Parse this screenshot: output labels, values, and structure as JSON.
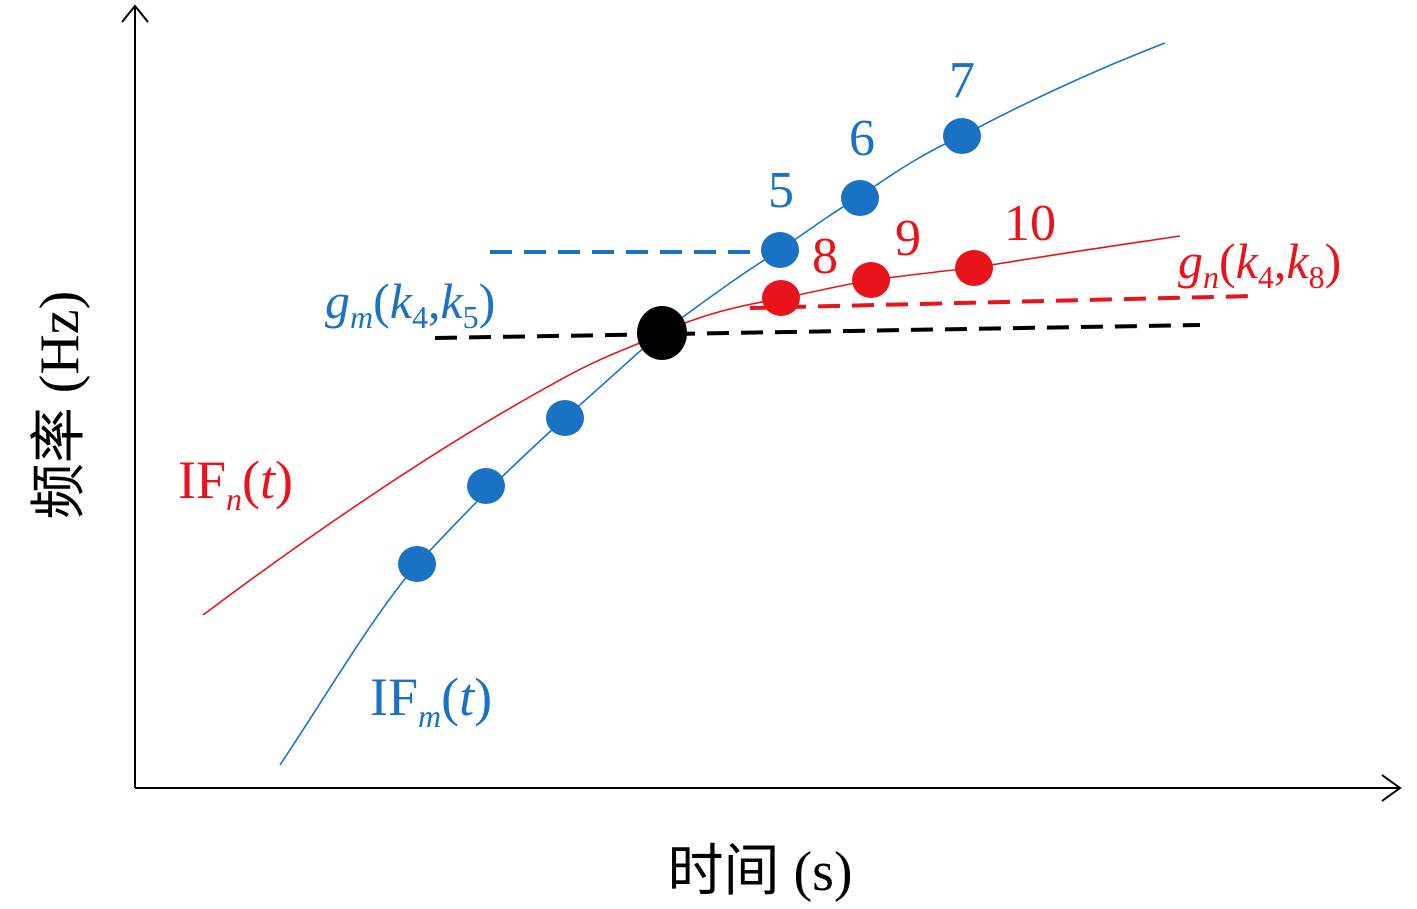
{
  "axes": {
    "x_label": "时间 (s)",
    "y_label": "频率 (Hz)"
  },
  "point_labels": [
    "5",
    "6",
    "7",
    "8",
    "9",
    "10"
  ],
  "curve_labels": {
    "if_m": [
      "IF",
      "m",
      "(",
      "t",
      ")"
    ],
    "if_n": [
      "IF",
      "n",
      "(",
      "t",
      ")"
    ],
    "g_m": [
      "g",
      "m",
      "(",
      "k",
      "4",
      ",",
      "k",
      "5",
      ")"
    ],
    "g_n": [
      "g",
      "n",
      "(",
      "k",
      "4",
      ",",
      "k",
      "8",
      ")"
    ]
  }
}
